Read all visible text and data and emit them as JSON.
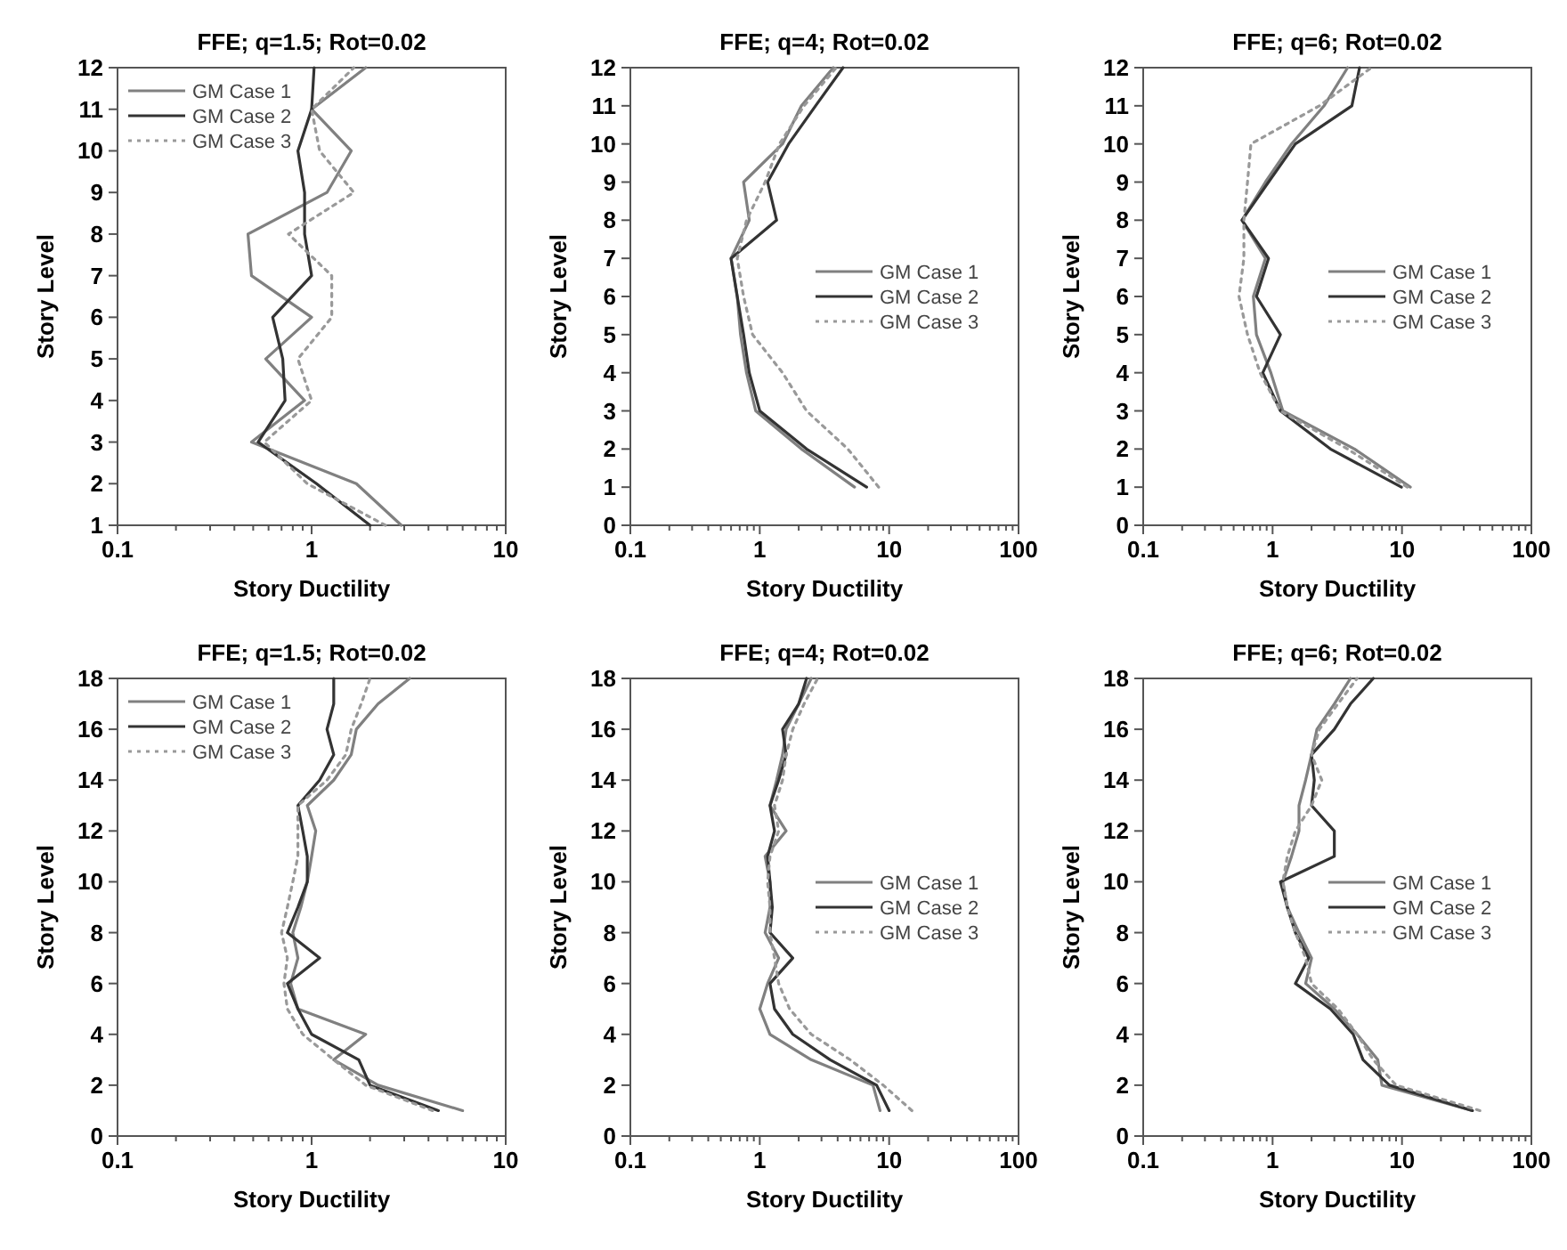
{
  "chart_data": [
    {
      "type": "line",
      "title": "FFE; q=1.5; Rot=0.02",
      "xlabel": "Story Ductility",
      "ylabel": "Story Level",
      "log": "x",
      "grid": false,
      "legend": "top left",
      "marker": "none",
      "xlim": [
        0.1,
        10
      ],
      "ylim": [
        1,
        12
      ],
      "xticks": [
        0.1,
        {
          "value": 0.2,
          "label": null
        },
        {
          "value": 0.3,
          "label": null
        },
        {
          "value": 0.4,
          "label": null
        },
        {
          "value": 0.5,
          "label": null
        },
        {
          "value": 0.6,
          "label": null
        },
        {
          "value": 0.7,
          "label": null
        },
        {
          "value": 0.8,
          "label": null
        },
        {
          "value": 0.9,
          "label": null
        },
        1,
        {
          "value": 2,
          "label": null
        },
        {
          "value": 3,
          "label": null
        },
        {
          "value": 4,
          "label": null
        },
        {
          "value": 5,
          "label": null
        },
        {
          "value": 6,
          "label": null
        },
        {
          "value": 7,
          "label": null
        },
        {
          "value": 8,
          "label": null
        },
        {
          "value": 9,
          "label": null
        },
        10
      ],
      "yticks": [
        1,
        2,
        3,
        4,
        5,
        6,
        7,
        8,
        9,
        10,
        11,
        12
      ],
      "series": [
        {
          "name": "GM Case 1",
          "color": "#808080",
          "line_style": "solid",
          "x": [
            2.9,
            1.7,
            0.49,
            0.92,
            0.58,
            1.0,
            0.49,
            0.47,
            1.2,
            1.6,
            1.0,
            1.9
          ],
          "values": [
            1,
            2,
            3,
            4,
            5,
            6,
            7,
            8,
            9,
            10,
            11,
            12
          ]
        },
        {
          "name": "GM Case 2",
          "color": "#333333",
          "line_style": "solid",
          "x": [
            2.0,
            1.06,
            0.53,
            0.73,
            0.71,
            0.63,
            1.0,
            0.92,
            0.92,
            0.85,
            1.0,
            1.03
          ],
          "values": [
            1,
            2,
            3,
            4,
            5,
            6,
            7,
            8,
            9,
            10,
            11,
            12
          ]
        },
        {
          "name": "GM Case 3",
          "color": "#999999",
          "line_style": "dotted",
          "x": [
            2.4,
            0.95,
            0.57,
            1.0,
            0.85,
            1.27,
            1.27,
            0.76,
            1.65,
            1.1,
            1.0,
            1.65
          ],
          "values": [
            1,
            2,
            3,
            4,
            5,
            6,
            7,
            8,
            9,
            10,
            11,
            12
          ]
        }
      ]
    },
    {
      "type": "line",
      "title": "FFE; q=4; Rot=0.02",
      "xlabel": "Story Ductility",
      "ylabel": "Story Level",
      "log": "x",
      "grid": false,
      "legend": "right",
      "marker": "none",
      "xlim": [
        0.1,
        100
      ],
      "ylim": [
        0,
        12
      ],
      "xticks": [
        0.1,
        {
          "value": 0.2,
          "label": null
        },
        {
          "value": 0.3,
          "label": null
        },
        {
          "value": 0.4,
          "label": null
        },
        {
          "value": 0.5,
          "label": null
        },
        {
          "value": 0.6,
          "label": null
        },
        {
          "value": 0.7,
          "label": null
        },
        {
          "value": 0.8,
          "label": null
        },
        {
          "value": 0.9,
          "label": null
        },
        1,
        {
          "value": 2,
          "label": null
        },
        {
          "value": 3,
          "label": null
        },
        {
          "value": 4,
          "label": null
        },
        {
          "value": 5,
          "label": null
        },
        {
          "value": 6,
          "label": null
        },
        {
          "value": 7,
          "label": null
        },
        {
          "value": 8,
          "label": null
        },
        {
          "value": 9,
          "label": null
        },
        10,
        {
          "value": 20,
          "label": null
        },
        {
          "value": 30,
          "label": null
        },
        {
          "value": 40,
          "label": null
        },
        {
          "value": 50,
          "label": null
        },
        {
          "value": 60,
          "label": null
        },
        {
          "value": 70,
          "label": null
        },
        {
          "value": 80,
          "label": null
        },
        {
          "value": 90,
          "label": null
        },
        100
      ],
      "yticks": [
        0,
        1,
        2,
        3,
        4,
        5,
        6,
        7,
        8,
        9,
        10,
        11,
        12
      ],
      "series": [
        {
          "name": "GM Case 1",
          "color": "#808080",
          "line_style": "solid",
          "x": [
            5.4,
            2.1,
            0.93,
            0.79,
            0.71,
            0.67,
            0.6,
            0.83,
            0.75,
            1.5,
            2.1,
            3.7
          ],
          "values": [
            1,
            2,
            3,
            4,
            5,
            6,
            7,
            8,
            9,
            10,
            11,
            12
          ]
        },
        {
          "name": "GM Case 2",
          "color": "#333333",
          "line_style": "solid",
          "x": [
            6.7,
            2.3,
            1.0,
            0.83,
            0.75,
            0.67,
            0.6,
            1.35,
            1.15,
            1.67,
            2.7,
            4.4
          ],
          "values": [
            1,
            2,
            3,
            4,
            5,
            6,
            7,
            8,
            9,
            10,
            11,
            12
          ]
        },
        {
          "name": "GM Case 3",
          "color": "#999999",
          "line_style": "dotted",
          "x": [
            8.3,
            4.8,
            2.3,
            1.5,
            0.88,
            0.75,
            0.67,
            0.79,
            1.1,
            1.42,
            2.2,
            3.9
          ],
          "values": [
            1,
            2,
            3,
            4,
            5,
            6,
            7,
            8,
            9,
            10,
            11,
            12
          ]
        }
      ]
    },
    {
      "type": "line",
      "title": "FFE; q=6; Rot=0.02",
      "xlabel": "Story Ductility",
      "ylabel": "Story Level",
      "log": "x",
      "grid": false,
      "legend": "right",
      "marker": "none",
      "xlim": [
        0.1,
        100
      ],
      "ylim": [
        0,
        12
      ],
      "xticks": [
        0.1,
        {
          "value": 0.2,
          "label": null
        },
        {
          "value": 0.3,
          "label": null
        },
        {
          "value": 0.4,
          "label": null
        },
        {
          "value": 0.5,
          "label": null
        },
        {
          "value": 0.6,
          "label": null
        },
        {
          "value": 0.7,
          "label": null
        },
        {
          "value": 0.8,
          "label": null
        },
        {
          "value": 0.9,
          "label": null
        },
        1,
        {
          "value": 2,
          "label": null
        },
        {
          "value": 3,
          "label": null
        },
        {
          "value": 4,
          "label": null
        },
        {
          "value": 5,
          "label": null
        },
        {
          "value": 6,
          "label": null
        },
        {
          "value": 7,
          "label": null
        },
        {
          "value": 8,
          "label": null
        },
        {
          "value": 9,
          "label": null
        },
        10,
        {
          "value": 20,
          "label": null
        },
        {
          "value": 30,
          "label": null
        },
        {
          "value": 40,
          "label": null
        },
        {
          "value": 50,
          "label": null
        },
        {
          "value": 60,
          "label": null
        },
        {
          "value": 70,
          "label": null
        },
        {
          "value": 80,
          "label": null
        },
        {
          "value": 90,
          "label": null
        },
        100
      ],
      "yticks": [
        0,
        1,
        2,
        3,
        4,
        5,
        6,
        7,
        8,
        9,
        10,
        11,
        12
      ],
      "series": [
        {
          "name": "GM Case 1",
          "color": "#808080",
          "line_style": "solid",
          "x": [
            11.6,
            4.3,
            1.2,
            0.97,
            0.75,
            0.71,
            0.88,
            0.58,
            0.88,
            1.4,
            2.5,
            3.8
          ],
          "values": [
            1,
            2,
            3,
            4,
            5,
            6,
            7,
            8,
            9,
            10,
            11,
            12
          ]
        },
        {
          "name": "GM Case 2",
          "color": "#333333",
          "line_style": "solid",
          "x": [
            9.9,
            2.8,
            1.15,
            0.84,
            1.15,
            0.75,
            0.93,
            0.58,
            0.93,
            1.5,
            4.1,
            4.7
          ],
          "values": [
            1,
            2,
            3,
            4,
            5,
            6,
            7,
            8,
            9,
            10,
            11,
            12
          ]
        },
        {
          "name": "GM Case 3",
          "color": "#999999",
          "line_style": "dotted",
          "x": [
            11,
            3.8,
            1.15,
            0.8,
            0.64,
            0.55,
            0.6,
            0.6,
            0.64,
            0.68,
            2.3,
            5.8
          ],
          "values": [
            1,
            2,
            3,
            4,
            5,
            6,
            7,
            8,
            9,
            10,
            11,
            12
          ]
        }
      ]
    },
    {
      "type": "line",
      "title": "FFE; q=1.5; Rot=0.02",
      "xlabel": "Story Ductility",
      "ylabel": "Story Level",
      "log": "x",
      "grid": false,
      "legend": "top left",
      "marker": "none",
      "xlim": [
        0.1,
        10
      ],
      "ylim": [
        0,
        18
      ],
      "xticks": [
        0.1,
        {
          "value": 0.2,
          "label": null
        },
        {
          "value": 0.3,
          "label": null
        },
        {
          "value": 0.4,
          "label": null
        },
        {
          "value": 0.5,
          "label": null
        },
        {
          "value": 0.6,
          "label": null
        },
        {
          "value": 0.7,
          "label": null
        },
        {
          "value": 0.8,
          "label": null
        },
        {
          "value": 0.9,
          "label": null
        },
        1,
        {
          "value": 2,
          "label": null
        },
        {
          "value": 3,
          "label": null
        },
        {
          "value": 4,
          "label": null
        },
        {
          "value": 5,
          "label": null
        },
        {
          "value": 6,
          "label": null
        },
        {
          "value": 7,
          "label": null
        },
        {
          "value": 8,
          "label": null
        },
        {
          "value": 9,
          "label": null
        },
        10
      ],
      "yticks": [
        0,
        2,
        4,
        6,
        8,
        10,
        12,
        14,
        16,
        18
      ],
      "series": [
        {
          "name": "GM Case 1",
          "color": "#808080",
          "line_style": "solid",
          "x": [
            6,
            2.2,
            1.3,
            1.9,
            0.85,
            0.78,
            0.85,
            0.8,
            0.88,
            0.95,
            1.0,
            1.05,
            0.95,
            1.3,
            1.6,
            1.7,
            2.2,
            3.2
          ],
          "values": [
            1,
            2,
            3,
            4,
            5,
            6,
            7,
            8,
            9,
            10,
            11,
            12,
            13,
            14,
            15,
            16,
            17,
            18
          ]
        },
        {
          "name": "GM Case 2",
          "color": "#333333",
          "line_style": "solid",
          "x": [
            4.5,
            2.0,
            1.75,
            1.0,
            0.85,
            0.75,
            1.1,
            0.75,
            0.85,
            0.95,
            0.95,
            0.9,
            0.85,
            1.1,
            1.3,
            1.2,
            1.3,
            1.3
          ],
          "values": [
            1,
            2,
            3,
            4,
            5,
            6,
            7,
            8,
            9,
            10,
            11,
            12,
            13,
            14,
            15,
            16,
            17,
            18
          ]
        },
        {
          "name": "GM Case 3",
          "color": "#999999",
          "line_style": "dotted",
          "x": [
            4.2,
            1.9,
            1.3,
            0.9,
            0.75,
            0.72,
            0.75,
            0.7,
            0.75,
            0.8,
            0.85,
            0.85,
            0.85,
            1.2,
            1.5,
            1.6,
            1.8,
            2.0
          ],
          "values": [
            1,
            2,
            3,
            4,
            5,
            6,
            7,
            8,
            9,
            10,
            11,
            12,
            13,
            14,
            15,
            16,
            17,
            18
          ]
        }
      ]
    },
    {
      "type": "line",
      "title": "FFE; q=4; Rot=0.02",
      "xlabel": "Story Ductility",
      "ylabel": "Story Level",
      "log": "x",
      "grid": false,
      "legend": "right",
      "marker": "none",
      "xlim": [
        0.1,
        100
      ],
      "ylim": [
        0,
        18
      ],
      "xticks": [
        0.1,
        {
          "value": 0.2,
          "label": null
        },
        {
          "value": 0.3,
          "label": null
        },
        {
          "value": 0.4,
          "label": null
        },
        {
          "value": 0.5,
          "label": null
        },
        {
          "value": 0.6,
          "label": null
        },
        {
          "value": 0.7,
          "label": null
        },
        {
          "value": 0.8,
          "label": null
        },
        {
          "value": 0.9,
          "label": null
        },
        1,
        {
          "value": 2,
          "label": null
        },
        {
          "value": 3,
          "label": null
        },
        {
          "value": 4,
          "label": null
        },
        {
          "value": 5,
          "label": null
        },
        {
          "value": 6,
          "label": null
        },
        {
          "value": 7,
          "label": null
        },
        {
          "value": 8,
          "label": null
        },
        {
          "value": 9,
          "label": null
        },
        10,
        {
          "value": 20,
          "label": null
        },
        {
          "value": 30,
          "label": null
        },
        {
          "value": 40,
          "label": null
        },
        {
          "value": 50,
          "label": null
        },
        {
          "value": 60,
          "label": null
        },
        {
          "value": 70,
          "label": null
        },
        {
          "value": 80,
          "label": null
        },
        {
          "value": 90,
          "label": null
        },
        100
      ],
      "yticks": [
        0,
        2,
        4,
        6,
        8,
        10,
        12,
        14,
        16,
        18
      ],
      "series": [
        {
          "name": "GM Case 1",
          "color": "#808080",
          "line_style": "solid",
          "x": [
            8.5,
            7.5,
            2.5,
            1.2,
            1.0,
            1.15,
            1.4,
            1.1,
            1.2,
            1.2,
            1.1,
            1.6,
            1.2,
            1.35,
            1.5,
            1.6,
            2.0,
            2.5
          ],
          "values": [
            1,
            2,
            3,
            4,
            5,
            6,
            7,
            8,
            9,
            10,
            11,
            12,
            13,
            14,
            15,
            16,
            17,
            18
          ]
        },
        {
          "name": "GM Case 2",
          "color": "#333333",
          "line_style": "solid",
          "x": [
            10,
            8,
            3.5,
            1.8,
            1.3,
            1.2,
            1.8,
            1.2,
            1.25,
            1.2,
            1.15,
            1.3,
            1.2,
            1.4,
            1.6,
            1.5,
            2.0,
            2.3
          ],
          "values": [
            1,
            2,
            3,
            4,
            5,
            6,
            7,
            8,
            9,
            10,
            11,
            12,
            13,
            14,
            15,
            16,
            17,
            18
          ]
        },
        {
          "name": "GM Case 3",
          "color": "#999999",
          "line_style": "dotted",
          "x": [
            15,
            9,
            5,
            2.5,
            1.7,
            1.4,
            1.3,
            1.2,
            1.2,
            1.15,
            1.2,
            1.4,
            1.3,
            1.5,
            1.6,
            1.8,
            2.2,
            2.8
          ],
          "values": [
            1,
            2,
            3,
            4,
            5,
            6,
            7,
            8,
            9,
            10,
            11,
            12,
            13,
            14,
            15,
            16,
            17,
            18
          ]
        }
      ]
    },
    {
      "type": "line",
      "title": "FFE; q=6; Rot=0.02",
      "xlabel": "Story Ductility",
      "ylabel": "Story Level",
      "log": "x",
      "grid": false,
      "legend": "right",
      "marker": "none",
      "xlim": [
        0.1,
        100
      ],
      "ylim": [
        0,
        18
      ],
      "xticks": [
        0.1,
        {
          "value": 0.2,
          "label": null
        },
        {
          "value": 0.3,
          "label": null
        },
        {
          "value": 0.4,
          "label": null
        },
        {
          "value": 0.5,
          "label": null
        },
        {
          "value": 0.6,
          "label": null
        },
        {
          "value": 0.7,
          "label": null
        },
        {
          "value": 0.8,
          "label": null
        },
        {
          "value": 0.9,
          "label": null
        },
        1,
        {
          "value": 2,
          "label": null
        },
        {
          "value": 3,
          "label": null
        },
        {
          "value": 4,
          "label": null
        },
        {
          "value": 5,
          "label": null
        },
        {
          "value": 6,
          "label": null
        },
        {
          "value": 7,
          "label": null
        },
        {
          "value": 8,
          "label": null
        },
        {
          "value": 9,
          "label": null
        },
        10,
        {
          "value": 20,
          "label": null
        },
        {
          "value": 30,
          "label": null
        },
        {
          "value": 40,
          "label": null
        },
        {
          "value": 50,
          "label": null
        },
        {
          "value": 60,
          "label": null
        },
        {
          "value": 70,
          "label": null
        },
        {
          "value": 80,
          "label": null
        },
        {
          "value": 90,
          "label": null
        },
        100
      ],
      "yticks": [
        0,
        2,
        4,
        6,
        8,
        10,
        12,
        14,
        16,
        18
      ],
      "series": [
        {
          "name": "GM Case 1",
          "color": "#808080",
          "line_style": "solid",
          "x": [
            35,
            7,
            6.5,
            4.5,
            3,
            1.8,
            2,
            1.6,
            1.3,
            1.2,
            1.4,
            1.6,
            1.6,
            1.8,
            2.0,
            2.2,
            3.0,
            4.0
          ],
          "values": [
            1,
            2,
            3,
            4,
            5,
            6,
            7,
            8,
            9,
            10,
            11,
            12,
            13,
            14,
            15,
            16,
            17,
            18
          ]
        },
        {
          "name": "GM Case 2",
          "color": "#333333",
          "line_style": "solid",
          "x": [
            35,
            8,
            5,
            4.2,
            2.8,
            1.5,
            1.9,
            1.5,
            1.3,
            1.15,
            3.0,
            3.0,
            2.0,
            2.1,
            2.0,
            3.0,
            4.0,
            6.0
          ],
          "values": [
            1,
            2,
            3,
            4,
            5,
            6,
            7,
            8,
            9,
            10,
            11,
            12,
            13,
            14,
            15,
            16,
            17,
            18
          ]
        },
        {
          "name": "GM Case 3",
          "color": "#999999",
          "line_style": "dotted",
          "x": [
            40,
            9,
            6,
            4.5,
            3.2,
            2.0,
            1.8,
            1.5,
            1.3,
            1.2,
            1.3,
            1.5,
            2.0,
            2.4,
            2.0,
            2.3,
            3.2,
            4.5
          ],
          "values": [
            1,
            2,
            3,
            4,
            5,
            6,
            7,
            8,
            9,
            10,
            11,
            12,
            13,
            14,
            15,
            16,
            17,
            18
          ]
        }
      ]
    }
  ]
}
